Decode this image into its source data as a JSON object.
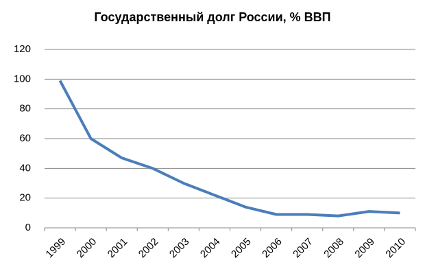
{
  "chart_data": {
    "type": "line",
    "title": "Государственный долг России, % ВВП",
    "categories": [
      "1999",
      "2000",
      "2001",
      "2002",
      "2003",
      "2004",
      "2005",
      "2006",
      "2007",
      "2008",
      "2009",
      "2010"
    ],
    "values": [
      99,
      60,
      47,
      40,
      30,
      22,
      14,
      9,
      9,
      8,
      11,
      10
    ],
    "color": "#4a7ebb",
    "ylim": [
      0,
      120
    ],
    "yticks": [
      0,
      20,
      40,
      60,
      80,
      100,
      120
    ],
    "grid": true
  }
}
